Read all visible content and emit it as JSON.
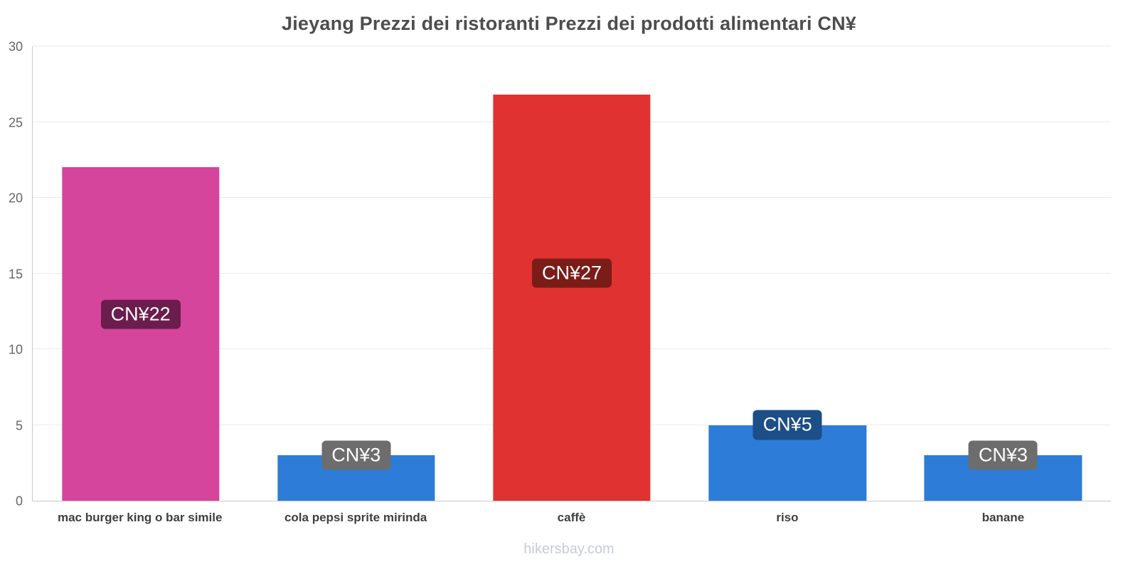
{
  "title": "Jieyang Prezzi dei ristoranti Prezzi dei prodotti alimentari CN¥",
  "footer": "hikersbay.com",
  "chart_data": {
    "type": "bar",
    "title": "Jieyang Prezzi dei ristoranti Prezzi dei prodotti alimentari CN¥",
    "categories": [
      "mac burger king o bar simile",
      "cola pepsi sprite mirinda",
      "caffè",
      "riso",
      "banane"
    ],
    "values": [
      22,
      3,
      26.8,
      5,
      3
    ],
    "value_labels": [
      "CN¥22",
      "CN¥3",
      "CN¥27",
      "CN¥5",
      "CN¥3"
    ],
    "bar_colors": [
      "#d6459c",
      "#2d7cd8",
      "#e03231",
      "#2d7cd8",
      "#2d7cd8"
    ],
    "label_bg_colors": [
      "#6b1d4e",
      "#6d6d6d",
      "#7a1d18",
      "#1c4e87",
      "#6d6d6d"
    ],
    "xlabel": "",
    "ylabel": "",
    "yticks": [
      0,
      5,
      10,
      15,
      20,
      25,
      30
    ],
    "ylim": [
      0,
      30
    ],
    "grid": true,
    "legend": false,
    "watermark": "hikersbay.com"
  }
}
